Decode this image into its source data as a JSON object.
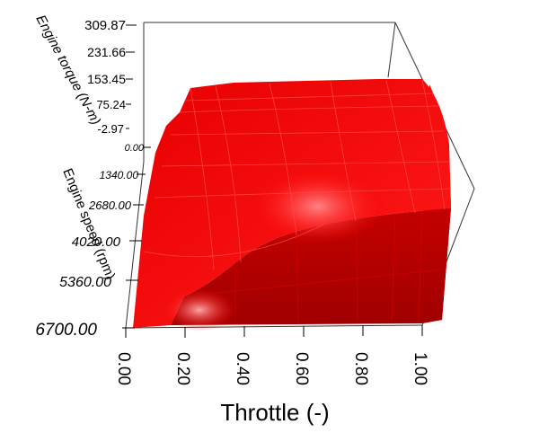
{
  "chart_data": {
    "type": "surface",
    "title": "",
    "xlabel": "Throttle (-)",
    "ylabel": "Engine speed (rpm)",
    "zlabel": "Engine torque (N-m)",
    "x_ticks": [
      "0.00",
      "0.20",
      "0.40",
      "0.60",
      "0.80",
      "1.00"
    ],
    "y_ticks": [
      "0.00",
      "1340.00",
      "2680.00",
      "4020.00",
      "5360.00",
      "6700.00"
    ],
    "z_ticks": [
      "309.87",
      "231.66",
      "153.45",
      "75.24",
      "-2.97"
    ],
    "xlim": [
      0,
      1
    ],
    "ylim": [
      0,
      6700
    ],
    "zlim": [
      -2.97,
      309.87
    ],
    "surface_color": "#ff0000",
    "grid": false
  }
}
